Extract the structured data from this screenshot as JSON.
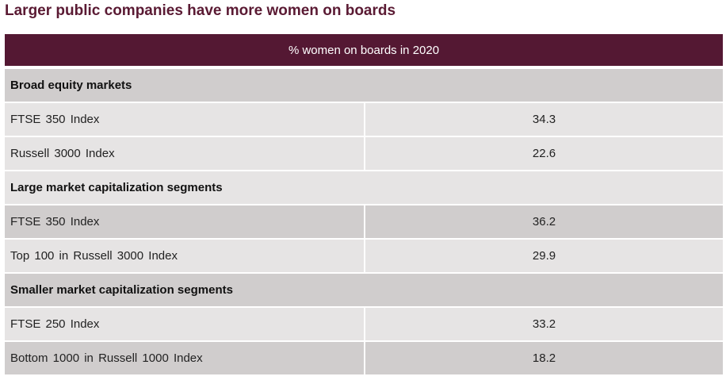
{
  "title": "Larger public companies have more women on boards",
  "table": {
    "header": "% women on boards in 2020"
  },
  "colors": {
    "title": "#5a1a33",
    "header_background": "#541833",
    "row_dark": "#d0cdcd",
    "row_light": "#e6e4e4"
  },
  "chart_data": {
    "type": "table",
    "title": "Larger public companies have more women on boards",
    "column_header": "% women on boards in 2020",
    "sections": [
      {
        "name": "Broad equity markets",
        "rows": [
          {
            "label": "FTSE 350 Index",
            "value": "34.3"
          },
          {
            "label": "Russell 3000 Index",
            "value": "22.6"
          }
        ]
      },
      {
        "name": "Large market capitalization segments",
        "rows": [
          {
            "label": "FTSE 350 Index",
            "value": "36.2"
          },
          {
            "label": "Top 100 in Russell 3000 Index",
            "value": "29.9"
          }
        ]
      },
      {
        "name": "Smaller market capitalization segments",
        "rows": [
          {
            "label": "FTSE 250 Index",
            "value": "33.2"
          },
          {
            "label": "Bottom 1000 in Russell 1000 Index",
            "value": "18.2"
          }
        ]
      }
    ]
  }
}
